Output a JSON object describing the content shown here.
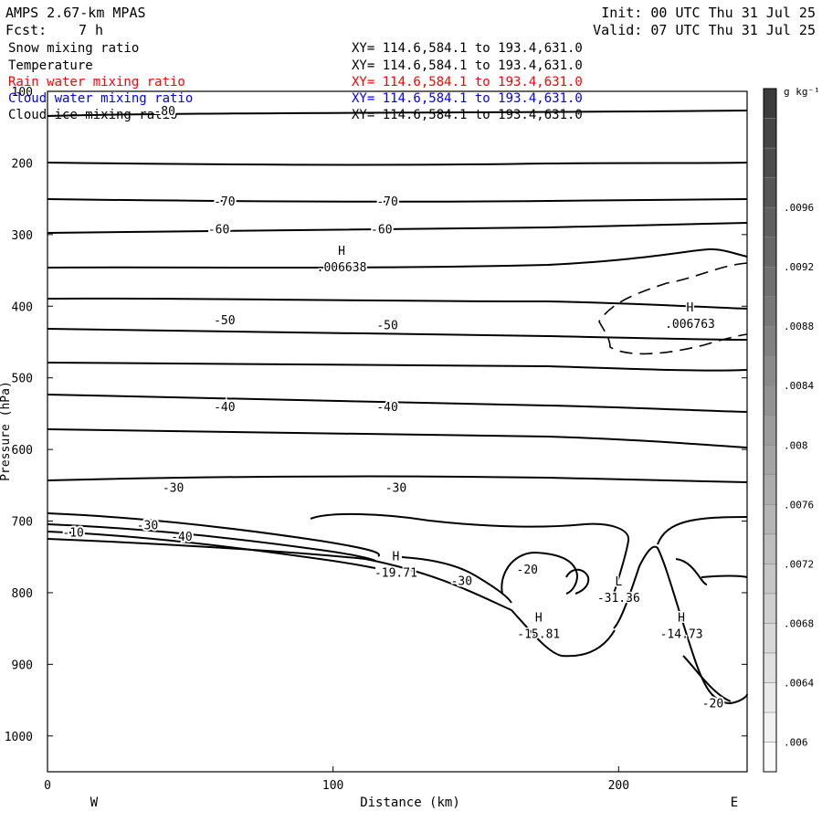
{
  "header": {
    "title": "AMPS 2.67-km MPAS",
    "init": "Init: 00 UTC Thu 31 Jul 25",
    "fcst_label": "Fcst:",
    "fcst_value": "7 h",
    "valid": "Valid: 07 UTC Thu 31 Jul 25"
  },
  "fields": [
    {
      "name": "Snow mixing ratio",
      "xy": "XY= 114.6,584.1 to 193.4,631.0",
      "color": "#000000"
    },
    {
      "name": "Temperature",
      "xy": "XY= 114.6,584.1 to 193.4,631.0",
      "color": "#000000"
    },
    {
      "name": "Rain water mixing ratio",
      "xy": "XY= 114.6,584.1 to 193.4,631.0",
      "color": "#ff0000"
    },
    {
      "name": "Cloud water mixing ratio",
      "xy": "XY= 114.6,584.1 to 193.4,631.0",
      "color": "#0000ff"
    },
    {
      "name": "Cloud ice mixing ratio",
      "xy": "XY= 114.6,584.1 to 193.4,631.0",
      "color": "#000000"
    }
  ],
  "chart_data": {
    "type": "line",
    "xlabel": "Distance (km)",
    "ylabel": "Pressure (hPa)",
    "xlim": [
      0,
      245
    ],
    "ylim": [
      1050,
      100
    ],
    "xticks": [
      0,
      100,
      200
    ],
    "yticks": [
      100,
      200,
      300,
      400,
      500,
      600,
      700,
      800,
      900,
      1000
    ],
    "x_end_labels": {
      "left": "W",
      "right": "E"
    },
    "isotherm_labels": [
      {
        "x": 41,
        "p": 127,
        "text": "-80"
      },
      {
        "x": 62,
        "p": 253,
        "text": "-70"
      },
      {
        "x": 119,
        "p": 253,
        "text": "-70"
      },
      {
        "x": 60,
        "p": 292,
        "text": "-60"
      },
      {
        "x": 117,
        "p": 292,
        "text": "-60"
      },
      {
        "x": 62,
        "p": 419,
        "text": "-50"
      },
      {
        "x": 119,
        "p": 426,
        "text": "-50"
      },
      {
        "x": 62,
        "p": 540,
        "text": "-40"
      },
      {
        "x": 119,
        "p": 540,
        "text": "-40"
      },
      {
        "x": 44,
        "p": 653,
        "text": "-30"
      },
      {
        "x": 122,
        "p": 653,
        "text": "-30"
      },
      {
        "x": 35,
        "p": 705,
        "text": "-30"
      },
      {
        "x": 47,
        "p": 721,
        "text": "-40"
      },
      {
        "x": 145,
        "p": 783,
        "text": "-30"
      },
      {
        "x": 168,
        "p": 767,
        "text": "-20"
      },
      {
        "x": 233,
        "p": 954,
        "text": "-20"
      },
      {
        "x": 9,
        "p": 715,
        "text": "-10"
      }
    ],
    "extrema": [
      {
        "kind": "H",
        "x": 103,
        "p": 328,
        "value": ".006638"
      },
      {
        "kind": "H",
        "x": 225,
        "p": 407,
        "value": ".006763"
      },
      {
        "kind": "H",
        "x": 122,
        "p": 755,
        "value": "-19.71"
      },
      {
        "kind": "H",
        "x": 172,
        "p": 840,
        "value": "-15.81"
      },
      {
        "kind": "L",
        "x": 200,
        "p": 790,
        "value": "-31.36"
      },
      {
        "kind": "H",
        "x": 222,
        "p": 840,
        "value": "-14.73"
      }
    ],
    "colorbar": {
      "unit": "g kg⁻¹",
      "ticks": [
        ".006",
        ".0064",
        ".0068",
        ".0072",
        ".0076",
        ".008",
        ".0084",
        ".0088",
        ".0092",
        ".0096"
      ],
      "min": 0.0058,
      "max": 0.0104
    }
  }
}
